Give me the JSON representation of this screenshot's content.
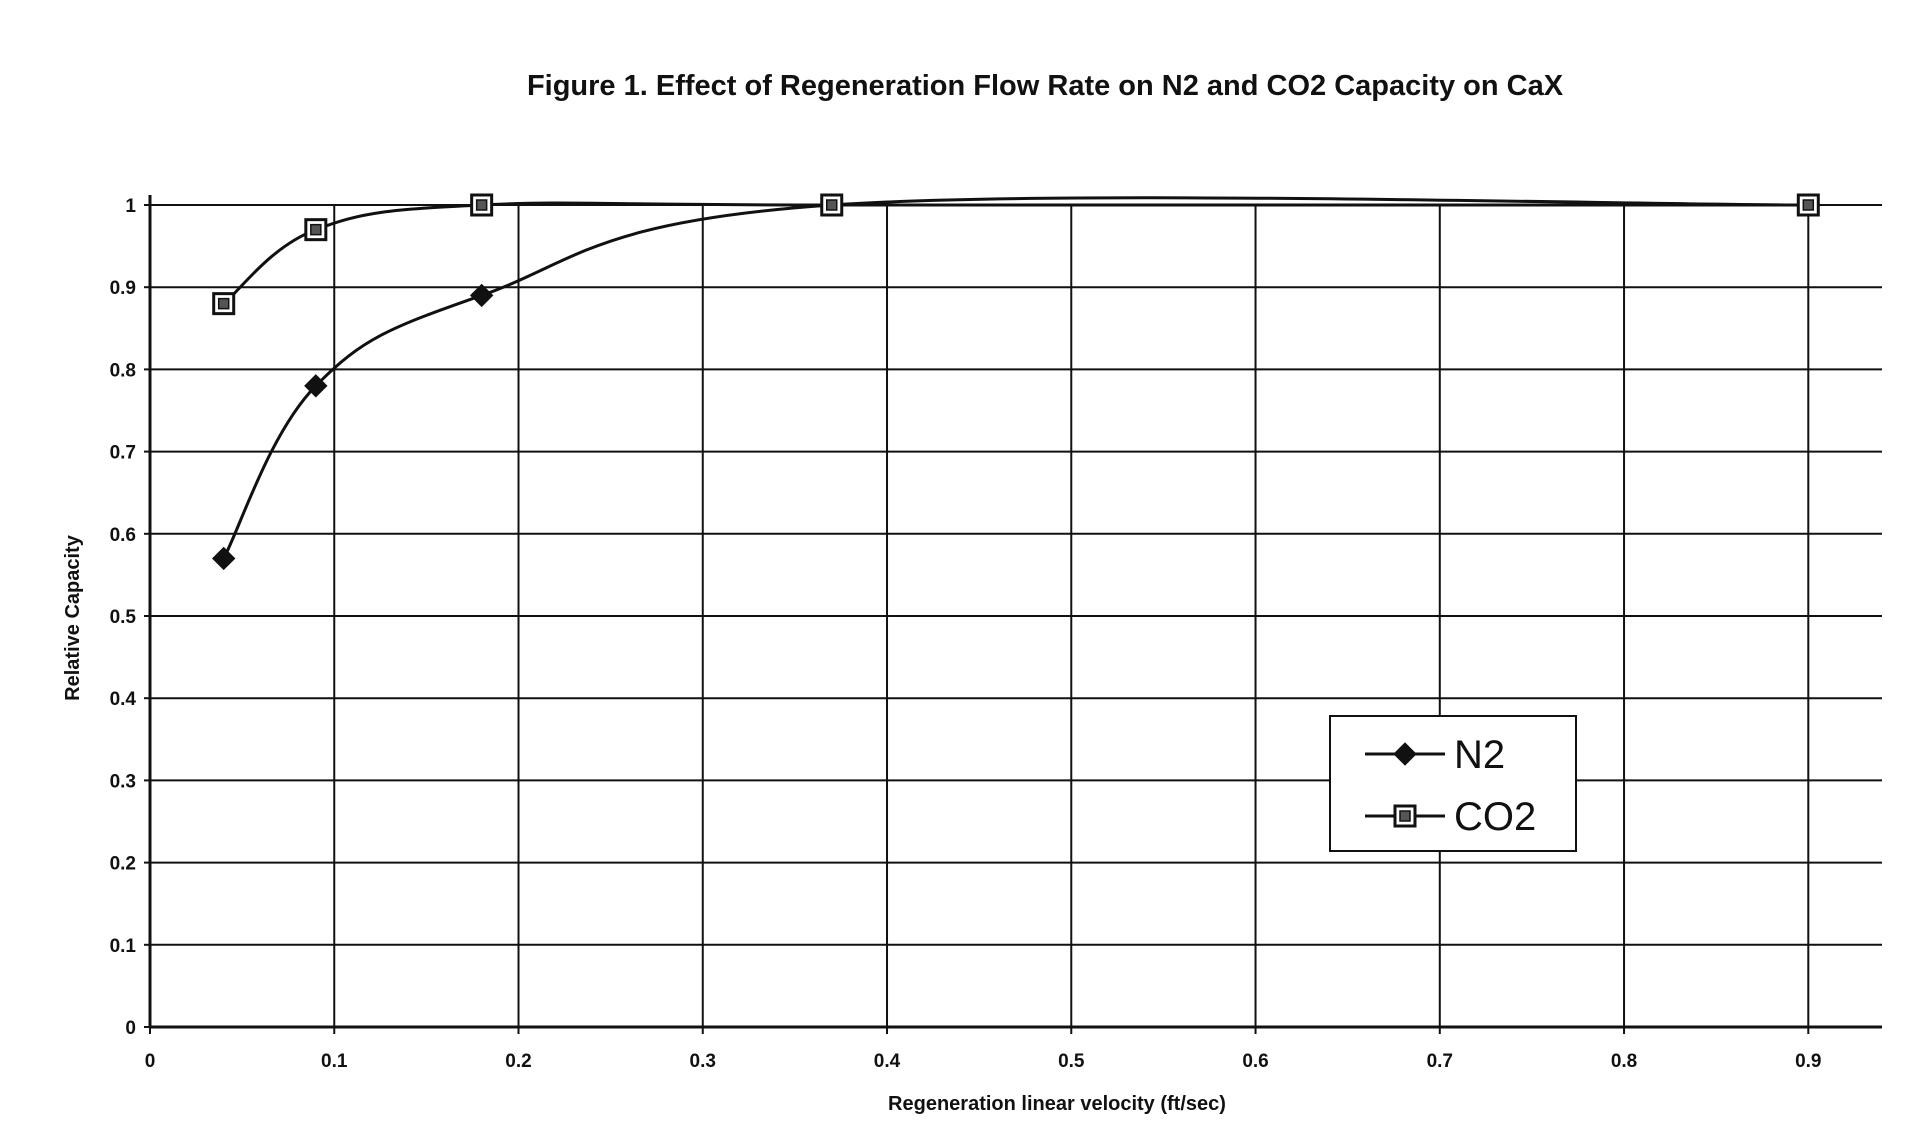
{
  "chart_data": {
    "type": "line",
    "title": "Figure 1.  Effect of Regeneration Flow Rate on N2 and CO2 Capacity on CaX",
    "xlabel": "Regeneration linear velocity (ft/sec)",
    "ylabel": "Relative Capacity",
    "xlim": [
      0,
      0.94
    ],
    "ylim": [
      0,
      1
    ],
    "xticks": [
      "0",
      "0.1",
      "0.2",
      "0.3",
      "0.4",
      "0.5",
      "0.6",
      "0.7",
      "0.8",
      "0.9"
    ],
    "yticks": [
      "0",
      "0.1",
      "0.2",
      "0.3",
      "0.4",
      "0.5",
      "0.6",
      "0.7",
      "0.8",
      "0.9",
      "1"
    ],
    "grid": true,
    "legend_position": "lower-right",
    "smooth": true,
    "series": [
      {
        "name": "N2",
        "marker": "diamond",
        "color": "#111111",
        "x": [
          0.04,
          0.09,
          0.18,
          0.37,
          0.9
        ],
        "y": [
          0.57,
          0.78,
          0.89,
          1.0,
          1.0
        ]
      },
      {
        "name": "CO2",
        "marker": "square",
        "color": "#111111",
        "x": [
          0.04,
          0.09,
          0.18,
          0.37,
          0.9
        ],
        "y": [
          0.88,
          0.97,
          1.0,
          1.0,
          1.0
        ]
      }
    ]
  }
}
